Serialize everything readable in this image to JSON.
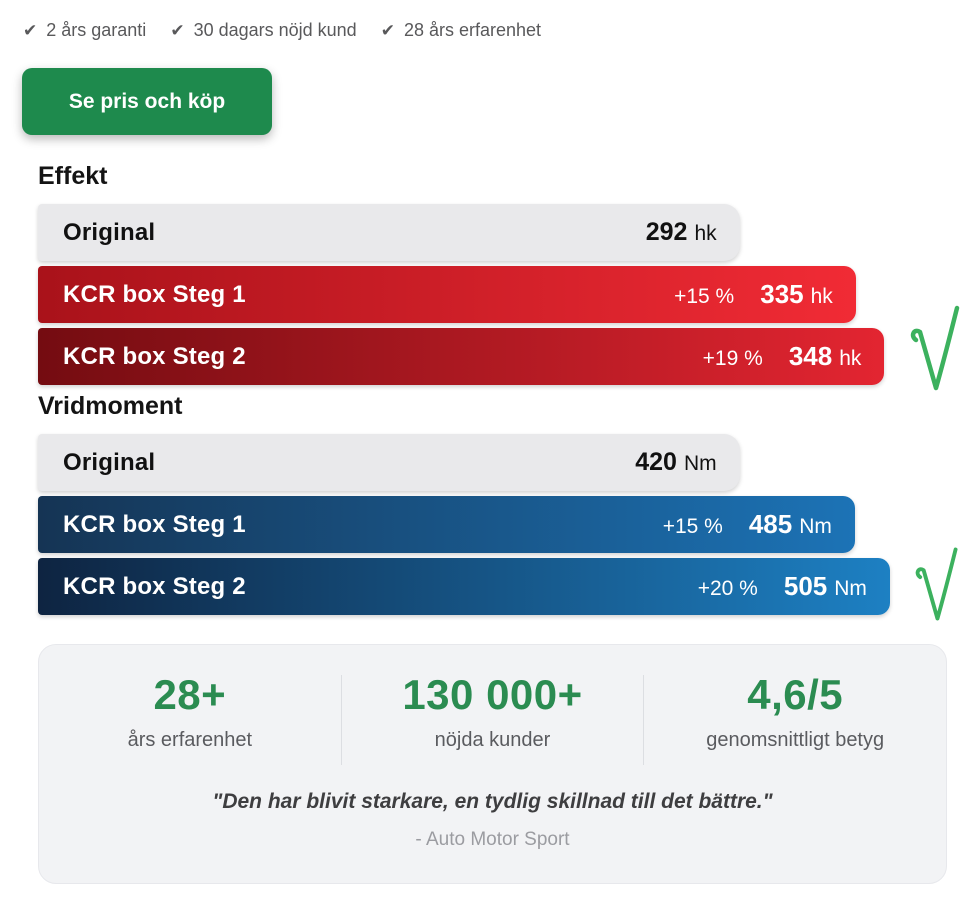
{
  "colors": {
    "cta_green": "#1e8a4d",
    "stat_green": "#2b8c51",
    "check_green": "#3cb15e",
    "gray_bar": "#e9e9eb",
    "red_gradient": [
      "#a9121a",
      "#f12b35"
    ],
    "red_dark_gradient": [
      "#740c11",
      "#e32531"
    ],
    "blue_gradient": [
      "#153454",
      "#1c73b6"
    ],
    "blue_dark_gradient": [
      "#0e2441",
      "#1d80c3"
    ]
  },
  "trust_bar": {
    "items": [
      {
        "icon": "check-icon",
        "glyph": "✔",
        "label": "2 års garanti"
      },
      {
        "icon": "check-icon",
        "glyph": "✔",
        "label": "30 dagars nöjd kund"
      },
      {
        "icon": "check-icon",
        "glyph": "✔",
        "label": "28 års erfarenhet"
      }
    ]
  },
  "cta": {
    "label": "Se pris och köp"
  },
  "charts": [
    {
      "title": "Effekt",
      "bars": [
        {
          "label": "Original",
          "delta": "",
          "value": "292",
          "unit": "hk",
          "width_pct": 76.1
        },
        {
          "label": "KCR box Steg 1",
          "delta": "+15 %",
          "value": "335",
          "unit": "hk",
          "width_pct": 88.7
        },
        {
          "label": "KCR box Steg 2",
          "delta": "+19 %",
          "value": "348",
          "unit": "hk",
          "width_pct": 91.8
        }
      ]
    },
    {
      "title": "Vridmoment",
      "bars": [
        {
          "label": "Original",
          "delta": "",
          "value": "420",
          "unit": "Nm",
          "width_pct": 76.1
        },
        {
          "label": "KCR box Steg 1",
          "delta": "+15 %",
          "value": "485",
          "unit": "Nm",
          "width_pct": 88.6
        },
        {
          "label": "KCR box Steg 2",
          "delta": "+20 %",
          "value": "505",
          "unit": "Nm",
          "width_pct": 92.4
        }
      ]
    }
  ],
  "chart_data": [
    {
      "type": "bar",
      "orientation": "horizontal",
      "title": "Effekt",
      "categories": [
        "Original",
        "KCR box Steg 1",
        "KCR box Steg 2"
      ],
      "values": [
        292,
        335,
        348
      ],
      "unit": "hk",
      "deltas": [
        null,
        "+15 %",
        "+19 %"
      ],
      "xlim": [
        0,
        380
      ],
      "grid": false,
      "legend": false
    },
    {
      "type": "bar",
      "orientation": "horizontal",
      "title": "Vridmoment",
      "categories": [
        "Original",
        "KCR box Steg 1",
        "KCR box Steg 2"
      ],
      "values": [
        420,
        485,
        505
      ],
      "unit": "Nm",
      "deltas": [
        null,
        "+15 %",
        "+20 %"
      ],
      "xlim": [
        0,
        550
      ],
      "grid": false,
      "legend": false
    }
  ],
  "stats": {
    "items": [
      {
        "value": "28+",
        "label": "års erfarenhet"
      },
      {
        "value": "130 000+",
        "label": "nöjda kunder"
      },
      {
        "value": "4,6/5",
        "label": "genomsnittligt betyg"
      }
    ],
    "quote": "\"Den har blivit starkare, en tydlig skillnad till det bättre.\"",
    "attribution": "- Auto Motor Sport"
  }
}
